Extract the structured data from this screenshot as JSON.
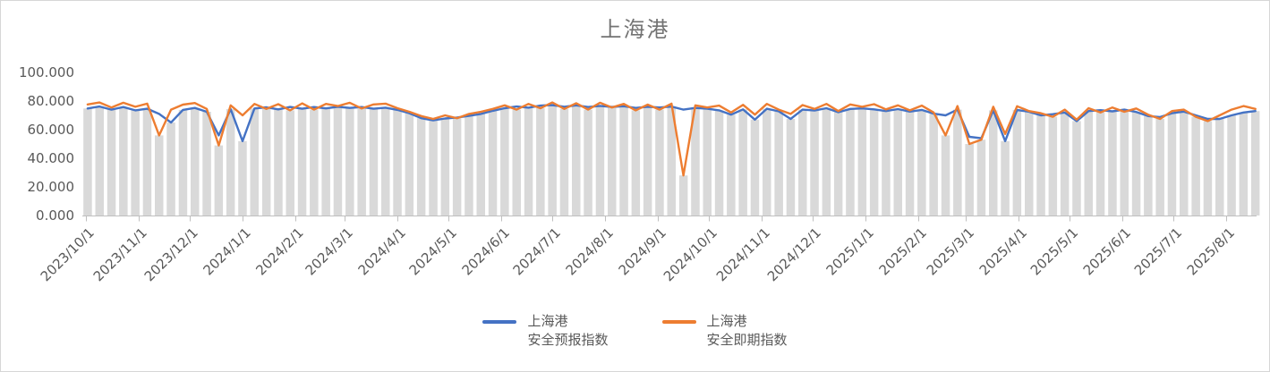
{
  "title": "上海港",
  "colors": {
    "forecast_line": "#4472C4",
    "spot_line": "#ED7D31",
    "background_bars": "#D9D9D9",
    "axis_line": "#BFBFBF",
    "tick_text": "#595959",
    "title_text": "#737373"
  },
  "y_axis": {
    "tick_labels_top_to_bottom": [
      "100.000",
      "80.000",
      "60.000",
      "40.000",
      "20.000",
      "0.000"
    ],
    "min": 0,
    "max": 100,
    "interval": 20
  },
  "x_axis": {
    "tick_labels": [
      "2023/10/1",
      "2023/11/1",
      "2023/12/1",
      "2024/1/1",
      "2024/2/1",
      "2024/3/1",
      "2024/4/1",
      "2024/5/1",
      "2024/6/1",
      "2024/7/1",
      "2024/8/1",
      "2024/9/1",
      "2024/10/1",
      "2024/11/1",
      "2024/12/1",
      "2025/1/1",
      "2025/2/1",
      "2025/3/1",
      "2025/4/1",
      "2025/5/1",
      "2025/6/1",
      "2025/7/1",
      "2025/8/1"
    ]
  },
  "legend": {
    "items": [
      {
        "name": "上海港 安全预报指数",
        "line1": "上海港",
        "line2": "安全预报指数",
        "color": "#4472C4"
      },
      {
        "name": "上海港 安全即期指数",
        "line1": "上海港",
        "line2": "安全即期指数",
        "color": "#ED7D31"
      }
    ]
  },
  "chart_data": {
    "type": "line",
    "title": "上海港",
    "xlabel": "",
    "ylabel": "",
    "ylim": [
      0,
      100
    ],
    "y_tick_interval": 20,
    "grid": false,
    "legend_position": "bottom",
    "x_tick_labels": [
      "2023/10/1",
      "2023/11/1",
      "2023/12/1",
      "2024/1/1",
      "2024/2/1",
      "2024/3/1",
      "2024/4/1",
      "2024/5/1",
      "2024/6/1",
      "2024/7/1",
      "2024/8/1",
      "2024/9/1",
      "2024/10/1",
      "2024/11/1",
      "2024/12/1",
      "2025/1/1",
      "2025/2/1",
      "2025/3/1",
      "2025/4/1",
      "2025/5/1",
      "2025/6/1",
      "2025/7/1",
      "2025/8/1"
    ],
    "x": [
      "2023/10/2",
      "2023/10/9",
      "2023/10/16",
      "2023/10/23",
      "2023/10/30",
      "2023/11/6",
      "2023/11/13",
      "2023/11/20",
      "2023/11/27",
      "2023/12/4",
      "2023/12/11",
      "2023/12/18",
      "2023/12/25",
      "2024/1/1",
      "2024/1/8",
      "2024/1/15",
      "2024/1/22",
      "2024/1/29",
      "2024/2/5",
      "2024/2/12",
      "2024/2/19",
      "2024/2/26",
      "2024/3/4",
      "2024/3/11",
      "2024/3/18",
      "2024/3/25",
      "2024/4/1",
      "2024/4/8",
      "2024/4/15",
      "2024/4/22",
      "2024/4/29",
      "2024/5/6",
      "2024/5/13",
      "2024/5/20",
      "2024/5/27",
      "2024/6/3",
      "2024/6/10",
      "2024/6/17",
      "2024/6/24",
      "2024/7/1",
      "2024/7/8",
      "2024/7/15",
      "2024/7/22",
      "2024/7/29",
      "2024/8/5",
      "2024/8/12",
      "2024/8/19",
      "2024/8/26",
      "2024/9/2",
      "2024/9/9",
      "2024/9/16",
      "2024/9/23",
      "2024/9/30",
      "2024/10/7",
      "2024/10/14",
      "2024/10/21",
      "2024/10/28",
      "2024/11/4",
      "2024/11/11",
      "2024/11/18",
      "2024/11/25",
      "2024/12/2",
      "2024/12/9",
      "2024/12/16",
      "2024/12/23",
      "2024/12/30",
      "2025/1/6",
      "2025/1/13",
      "2025/1/20",
      "2025/1/27",
      "2025/2/3",
      "2025/2/10",
      "2025/2/17",
      "2025/2/24",
      "2025/3/3",
      "2025/3/10",
      "2025/3/17",
      "2025/3/24",
      "2025/3/31",
      "2025/4/7",
      "2025/4/14",
      "2025/4/21",
      "2025/4/28",
      "2025/5/5",
      "2025/5/12",
      "2025/5/19",
      "2025/5/26",
      "2025/6/2",
      "2025/6/9",
      "2025/6/16",
      "2025/6/23",
      "2025/6/30",
      "2025/7/7",
      "2025/7/14",
      "2025/7/21",
      "2025/7/28",
      "2025/8/4",
      "2025/8/11",
      "2025/8/18"
    ],
    "series": [
      {
        "name": "上海港安全预报指数",
        "style": "line",
        "color": "#4472C4",
        "values": [
          74.8,
          76.2,
          74.0,
          75.8,
          73.5,
          74.6,
          71.0,
          65.0,
          73.8,
          75.2,
          72.5,
          56.0,
          74.4,
          52.0,
          74.8,
          75.6,
          74.2,
          75.9,
          74.6,
          75.8,
          74.9,
          76.0,
          75.2,
          75.8,
          74.6,
          75.4,
          73.8,
          71.5,
          68.0,
          66.5,
          67.8,
          68.5,
          69.6,
          71.0,
          73.2,
          75.0,
          76.2,
          75.4,
          76.8,
          77.2,
          76.0,
          77.0,
          75.8,
          76.6,
          75.9,
          76.4,
          75.2,
          76.0,
          75.5,
          76.1,
          74.0,
          75.2,
          74.6,
          73.5,
          70.5,
          74.2,
          67.0,
          74.6,
          72.8,
          67.5,
          74.0,
          73.4,
          75.0,
          72.2,
          74.5,
          74.9,
          74.2,
          73.0,
          74.4,
          72.6,
          73.8,
          71.2,
          70.0,
          74.0,
          55.0,
          54.0,
          73.5,
          52.0,
          73.8,
          72.5,
          70.0,
          70.8,
          72.0,
          66.0,
          73.0,
          73.6,
          72.8,
          74.0,
          72.4,
          69.5,
          68.8,
          71.5,
          72.6,
          70.0,
          67.5,
          67.5,
          70.0,
          72.0,
          73.0
        ]
      },
      {
        "name": "上海港安全即期指数",
        "style": "line",
        "color": "#ED7D31",
        "values": [
          77.6,
          79.0,
          75.5,
          78.8,
          76.0,
          78.2,
          56.0,
          74.0,
          77.5,
          78.6,
          74.5,
          49.0,
          77.0,
          70.0,
          78.0,
          74.5,
          77.8,
          73.5,
          78.4,
          74.0,
          78.0,
          76.5,
          78.8,
          74.8,
          77.6,
          78.2,
          75.0,
          72.5,
          69.5,
          67.5,
          70.0,
          68.0,
          71.0,
          72.5,
          74.5,
          77.0,
          74.0,
          78.0,
          75.0,
          79.0,
          74.5,
          78.5,
          74.0,
          78.8,
          75.5,
          78.0,
          73.5,
          77.5,
          74.0,
          78.2,
          28.0,
          77.0,
          75.5,
          76.8,
          72.0,
          77.4,
          70.5,
          78.0,
          74.0,
          71.0,
          77.2,
          74.5,
          78.0,
          73.0,
          77.6,
          76.0,
          77.8,
          74.2,
          77.0,
          73.5,
          76.8,
          72.0,
          56.0,
          76.5,
          50.0,
          53.0,
          76.0,
          57.0,
          76.4,
          73.0,
          71.5,
          69.0,
          74.0,
          67.0,
          75.0,
          72.0,
          75.5,
          72.5,
          74.8,
          70.5,
          67.5,
          73.0,
          74.0,
          69.0,
          66.0,
          70.0,
          74.0,
          76.5,
          74.5
        ]
      },
      {
        "name": "灰色背景柱",
        "style": "bar",
        "color": "#D9D9D9",
        "derived": "min_of_line_series"
      }
    ]
  }
}
